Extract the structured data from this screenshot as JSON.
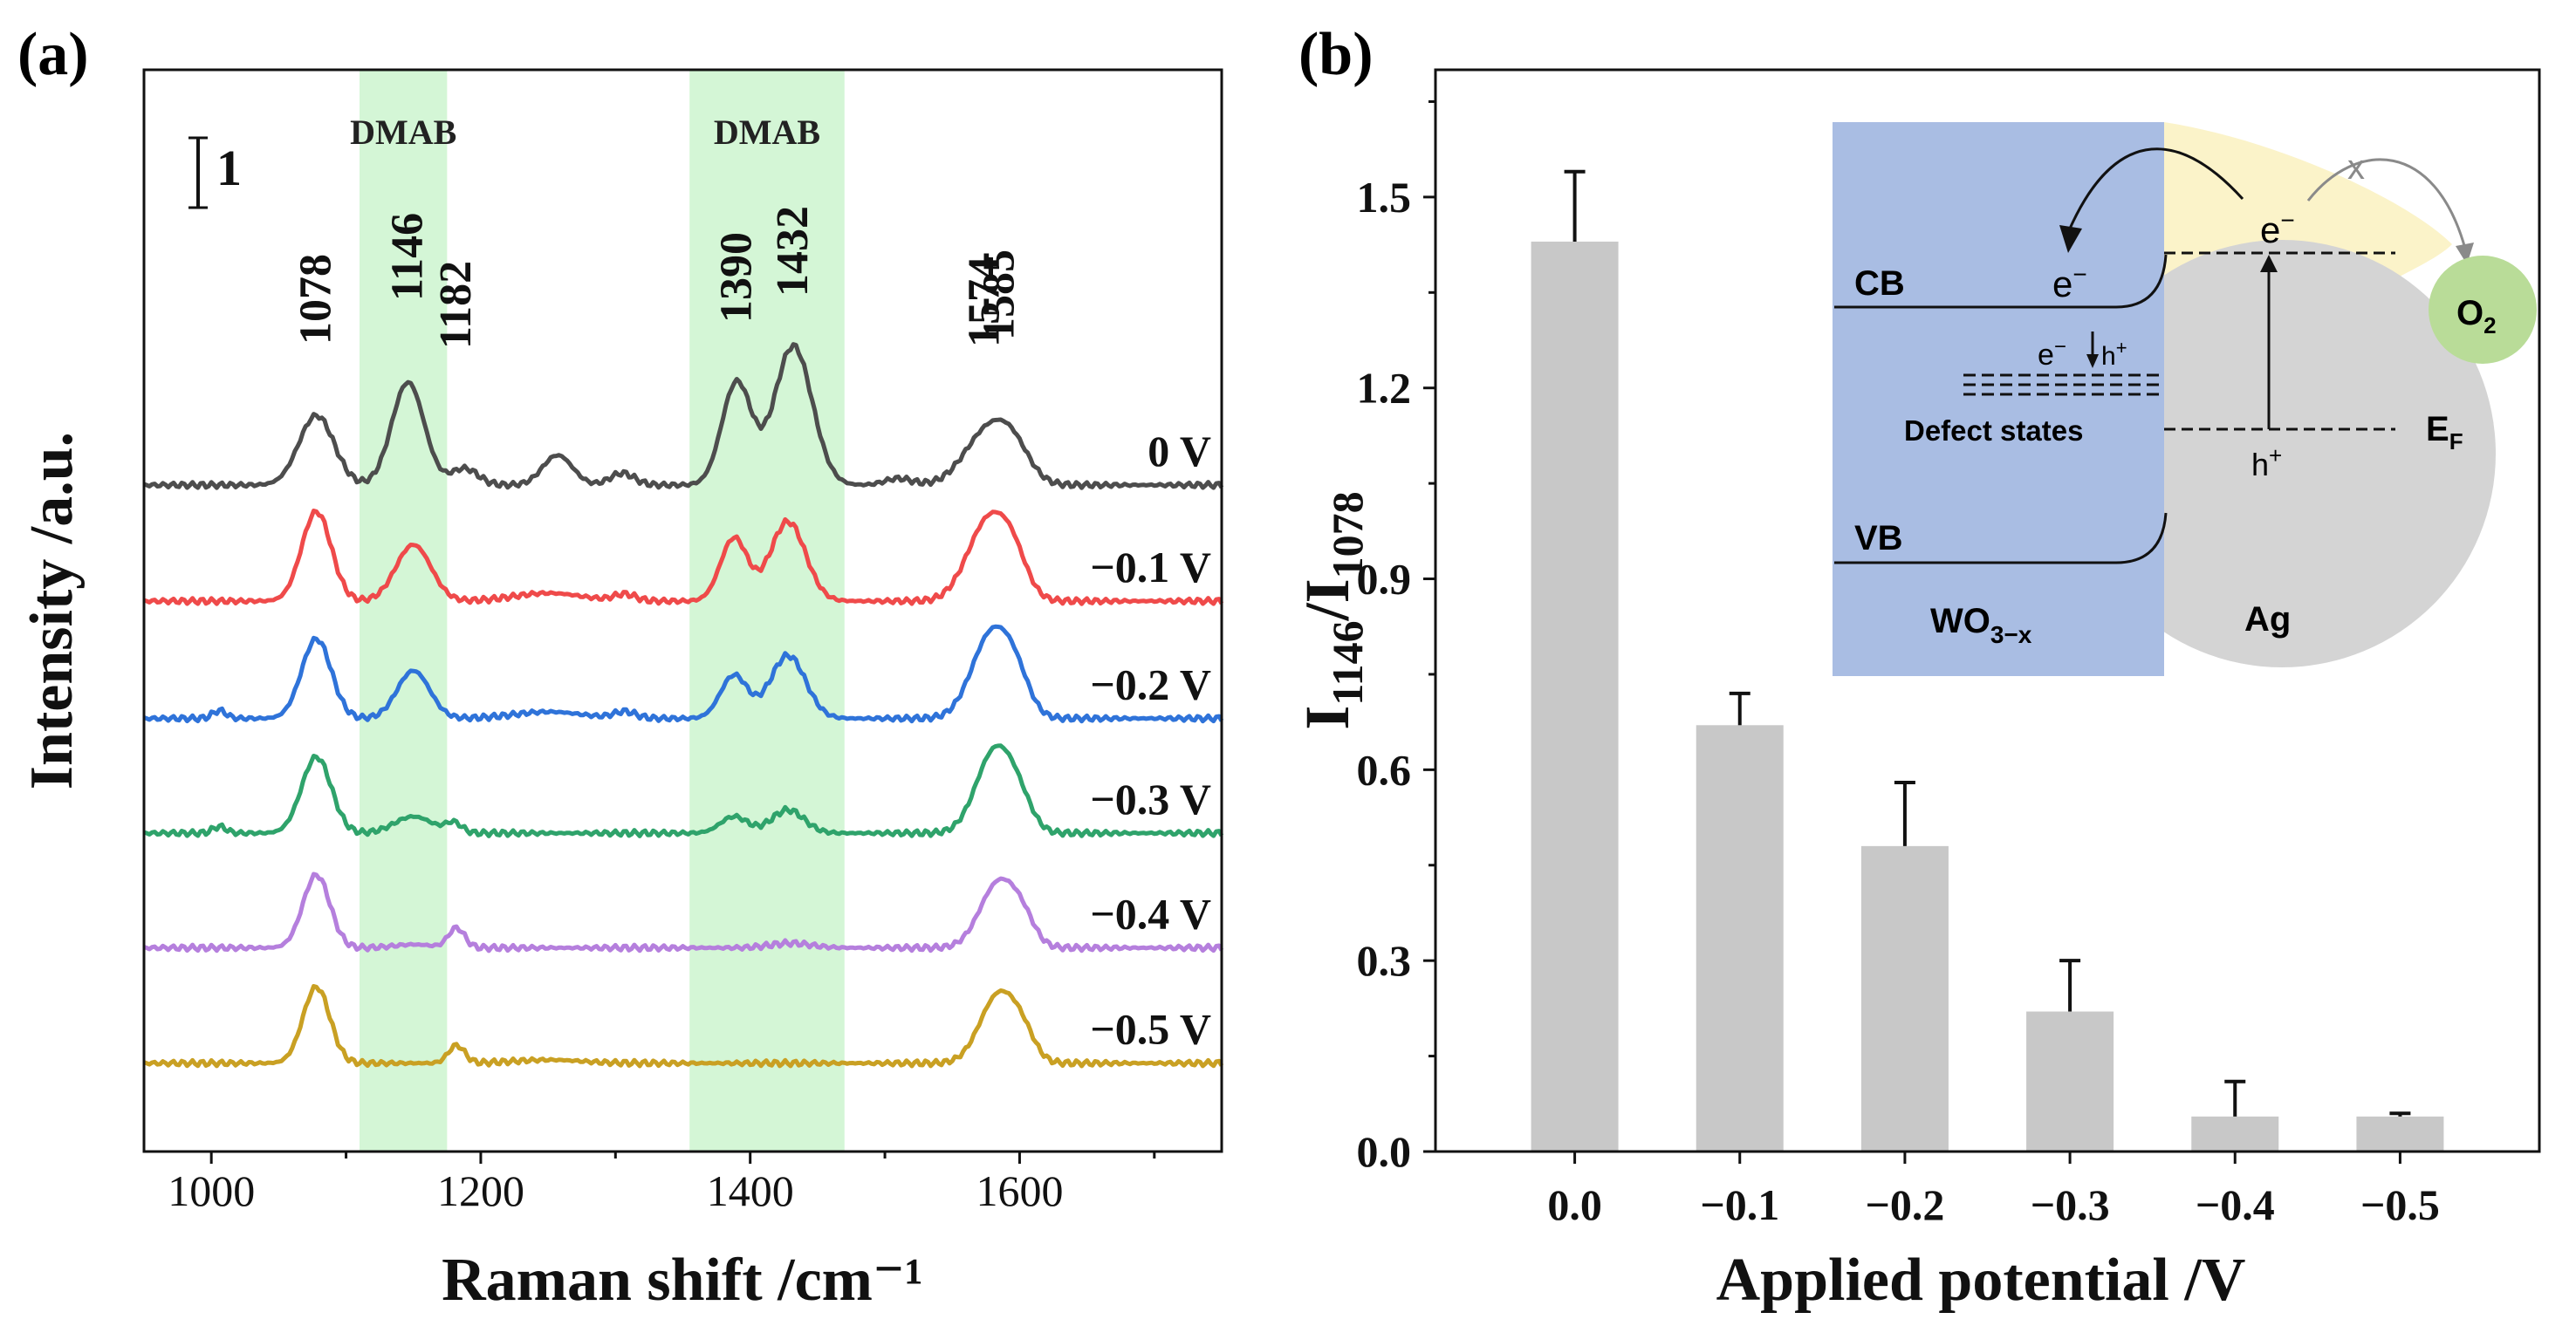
{
  "chart_data": [
    {
      "type": "line",
      "panel_label": "(a)",
      "xlabel": "Raman shift /cm⁻¹",
      "ylabel": "Intensity /a.u.",
      "xlim": [
        950,
        1750
      ],
      "xticks": [
        "1000",
        "1200",
        "1400",
        "1600"
      ],
      "scale_bar_label": "1",
      "highlight_bands": [
        {
          "label": "DMAB",
          "x0": 1110,
          "x1": 1175
        },
        {
          "label": "DMAB",
          "x0": 1355,
          "x1": 1470
        }
      ],
      "peak_labels": [
        "1078",
        "1146",
        "1182",
        "1390",
        "1432",
        "1574",
        "1585"
      ],
      "peak_positions": [
        1078,
        1146,
        1182,
        1390,
        1432,
        1574,
        1585
      ],
      "series": [
        {
          "name": "0 V",
          "color": "#4d4d4d",
          "baseline": 5.25,
          "peaks": [
            [
              1078,
              1.05,
              13
            ],
            [
              1146,
              1.55,
              12
            ],
            [
              1188,
              0.25,
              10
            ],
            [
              1257,
              0.45,
              11
            ],
            [
              1305,
              0.18,
              9
            ],
            [
              1390,
              1.55,
              11
            ],
            [
              1432,
              2.1,
              14
            ],
            [
              1510,
              0.1,
              10
            ],
            [
              1578,
              0.85,
              18
            ],
            [
              1596,
              0.3,
              12
            ]
          ]
        },
        {
          "name": "−0.1 V",
          "color": "#ef4a4a",
          "baseline": 3.5,
          "peaks": [
            [
              1078,
              1.35,
              11
            ],
            [
              1150,
              0.85,
              13
            ],
            [
              1250,
              0.12,
              25
            ],
            [
              1307,
              0.1,
              8
            ],
            [
              1388,
              0.95,
              10
            ],
            [
              1428,
              1.2,
              13
            ],
            [
              1578,
              1.25,
              16
            ],
            [
              1596,
              0.35,
              10
            ]
          ]
        },
        {
          "name": "−0.2 V",
          "color": "#2f73d9",
          "baseline": 1.73,
          "peaks": [
            [
              1006,
              0.12,
              5
            ],
            [
              1078,
              1.2,
              11
            ],
            [
              1150,
              0.72,
              12
            ],
            [
              1250,
              0.1,
              25
            ],
            [
              1307,
              0.1,
              8
            ],
            [
              1388,
              0.65,
              10
            ],
            [
              1428,
              0.95,
              13
            ],
            [
              1580,
              1.3,
              15
            ],
            [
              1598,
              0.35,
              10
            ]
          ]
        },
        {
          "name": "−0.3 V",
          "color": "#2fa36b",
          "baseline": 0.0,
          "peaks": [
            [
              1006,
              0.1,
              5
            ],
            [
              1078,
              1.15,
              11
            ],
            [
              1150,
              0.25,
              14
            ],
            [
              1180,
              0.15,
              6
            ],
            [
              1388,
              0.25,
              10
            ],
            [
              1428,
              0.35,
              12
            ],
            [
              1582,
              1.25,
              14
            ],
            [
              1600,
              0.3,
              10
            ]
          ]
        },
        {
          "name": "−0.4 V",
          "color": "#b57fdd",
          "baseline": -1.73,
          "peaks": [
            [
              1078,
              1.1,
              10
            ],
            [
              1150,
              0.05,
              14
            ],
            [
              1182,
              0.3,
              6
            ],
            [
              1430,
              0.07,
              15
            ],
            [
              1585,
              1.0,
              14
            ],
            [
              1603,
              0.25,
              9
            ]
          ]
        },
        {
          "name": "−0.5 V",
          "color": "#c9a023",
          "baseline": -3.47,
          "peaks": [
            [
              1078,
              1.15,
              10
            ],
            [
              1182,
              0.27,
              6
            ],
            [
              1250,
              0.05,
              25
            ],
            [
              1585,
              1.05,
              14
            ],
            [
              1603,
              0.25,
              9
            ]
          ]
        }
      ]
    },
    {
      "type": "bar",
      "panel_label": "(b)",
      "xlabel": "Applied potential /V",
      "ylabel_main": "I",
      "ylabel_sub1": "1146",
      "ylabel_sep": "/I",
      "ylabel_sub2": "1078",
      "categories": [
        "0.0",
        "−0.1",
        "−0.2",
        "−0.3",
        "−0.4",
        "−0.5"
      ],
      "values": [
        1.43,
        0.67,
        0.48,
        0.22,
        0.055,
        0.055
      ],
      "errors": [
        0.11,
        0.05,
        0.1,
        0.08,
        0.055,
        0.005
      ],
      "ylim": [
        0,
        1.7
      ],
      "yticks": [
        "0.0",
        "0.3",
        "0.6",
        "0.9",
        "1.2",
        "1.5"
      ],
      "bar_color": "#c8c8c8",
      "inset": {
        "semiconductor_label": "WO₃₋ₓ",
        "semiconductor_main": "WO",
        "semiconductor_sub": "3−x",
        "metal_label": "Ag",
        "cb_label": "CB",
        "vb_label": "VB",
        "defect_label": "Defect states",
        "fermi_label": "E",
        "fermi_sub": "F",
        "oxygen_label": "O",
        "oxygen_sub": "2",
        "electron_label": "e",
        "electron_sup": "−",
        "hole_label": "h",
        "hole_sup": "+",
        "blocked_mark": "x",
        "colors": {
          "semiconductor": "#a9bde3",
          "metal": "#d4d4d4",
          "plasmon": "#fbf3c9",
          "oxygen": "#b9dc98"
        }
      }
    }
  ]
}
